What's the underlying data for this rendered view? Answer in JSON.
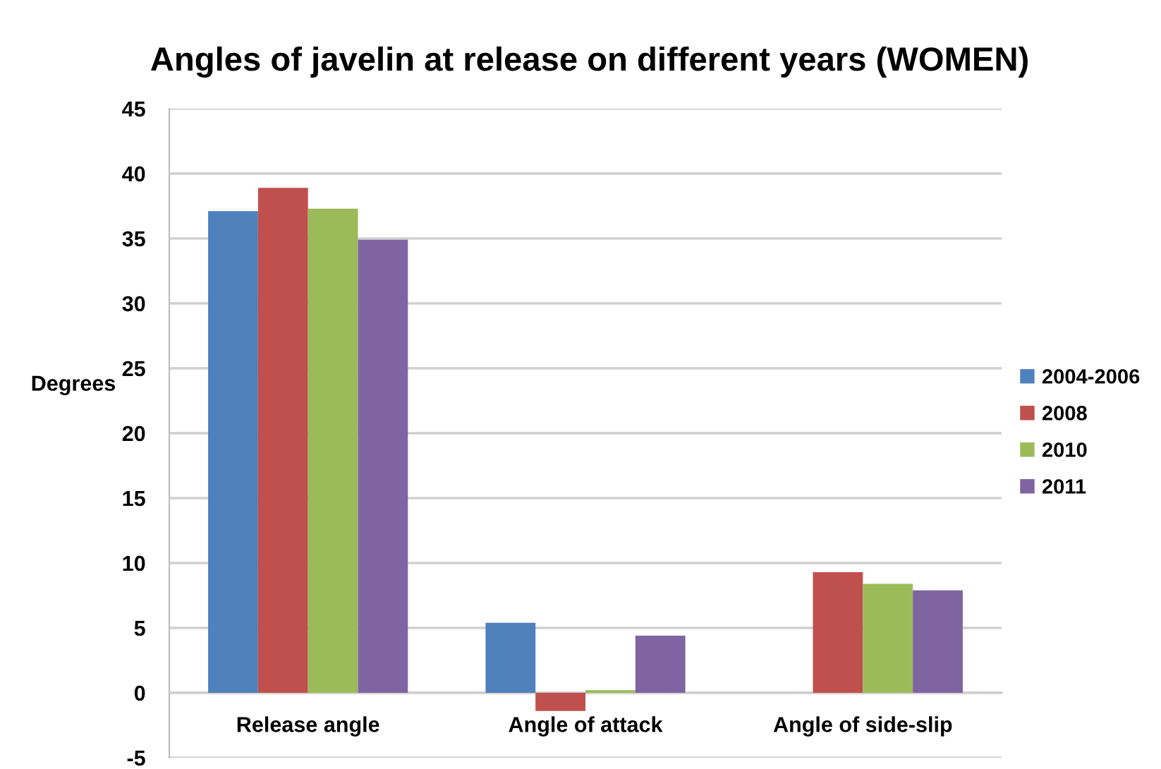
{
  "chart_data": {
    "type": "bar",
    "title": "Angles of javelin at release on different years (WOMEN)",
    "ylabel": "Degrees",
    "categories": [
      "Release angle",
      "Angle of attack",
      "Angle of side-slip"
    ],
    "series": [
      {
        "name": "2004-2006",
        "color": "#4f81bd",
        "values": [
          37.1,
          5.4,
          null
        ]
      },
      {
        "name": "2008",
        "color": "#c0504d",
        "values": [
          38.9,
          -1.4,
          9.3
        ]
      },
      {
        "name": "2010",
        "color": "#9bbb59",
        "values": [
          37.3,
          0.2,
          8.4
        ]
      },
      {
        "name": "2011",
        "color": "#8064a2",
        "values": [
          34.9,
          4.4,
          7.9
        ]
      }
    ],
    "ylim": [
      -5,
      45
    ],
    "yticks": [
      -5,
      0,
      5,
      10,
      15,
      20,
      25,
      30,
      35,
      40,
      45
    ],
    "grid": "y",
    "legend": "right"
  }
}
